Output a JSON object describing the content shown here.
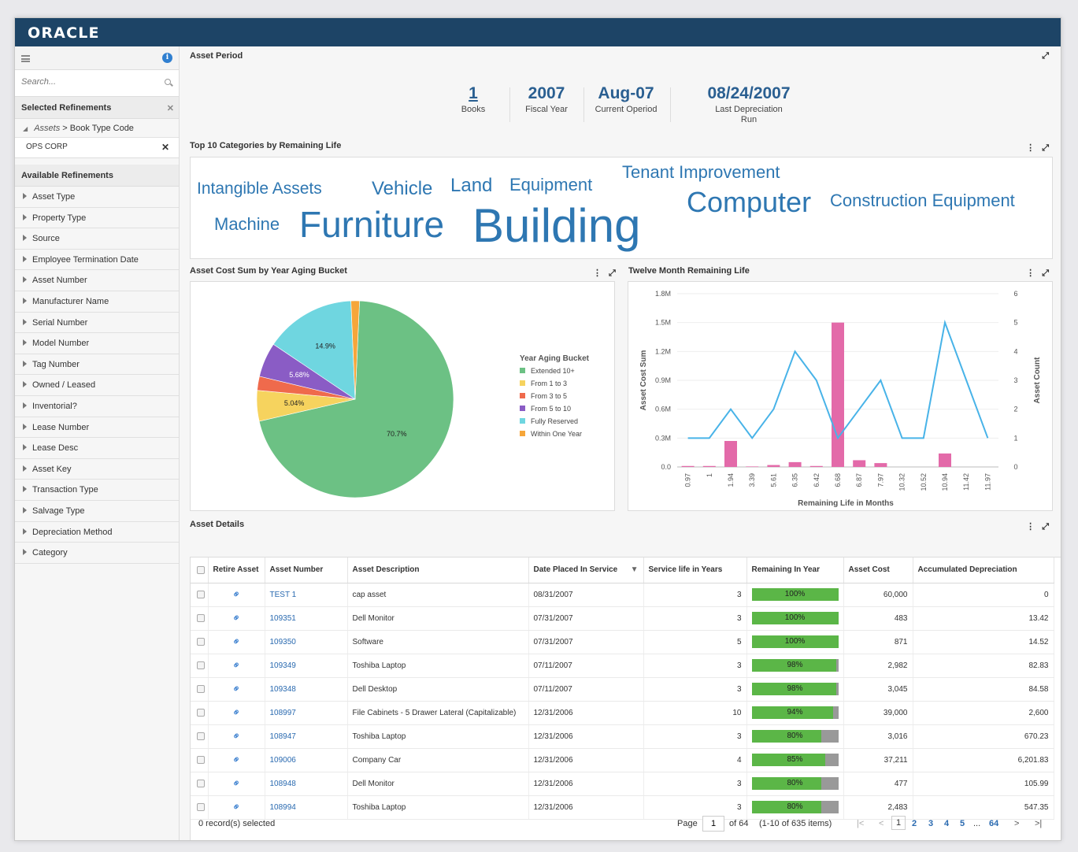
{
  "app": {
    "logo": "ORACLE"
  },
  "sidebar": {
    "search_placeholder": "Search...",
    "selected_title": "Selected Refinements",
    "crumb_link": "Assets",
    "crumb_sep": ">",
    "crumb_label": "Book Type Code",
    "chip_value": "OPS CORP",
    "available_title": "Available Refinements",
    "items": [
      "Asset Type",
      "Property Type",
      "Source",
      "Employee Termination Date",
      "Asset Number",
      "Manufacturer Name",
      "Serial Number",
      "Model Number",
      "Tag Number",
      "Owned / Leased",
      "Inventorial?",
      "Lease Number",
      "Lease Desc",
      "Asset Key",
      "Transaction Type",
      "Salvage Type",
      "Depreciation Method",
      "Category"
    ]
  },
  "asset_period": {
    "title": "Asset Period",
    "kpis": [
      {
        "value": "1",
        "label": "Books"
      },
      {
        "value": "2007",
        "label": "Fiscal Year"
      },
      {
        "value": "Aug-07",
        "label": "Current Operiod"
      },
      {
        "value": "08/24/2007",
        "label": "Last Depreciation Run"
      }
    ]
  },
  "tag_cloud": {
    "title": "Top 10 Categories by Remaining Life",
    "words": [
      "Intangible Assets",
      "Vehicle",
      "Land",
      "Equipment",
      "Tenant Improvement",
      "Machine",
      "Furniture",
      "Building",
      "Computer",
      "Construction Equipment"
    ]
  },
  "pie_panel": {
    "title": "Asset Cost Sum by Year Aging Bucket",
    "legend_title": "Year Aging Bucket"
  },
  "line_panel": {
    "title": "Twelve Month Remaining Life"
  },
  "chart_data": [
    {
      "type": "pie",
      "legend_title": "Year Aging Bucket",
      "labels": [
        "Extended 10+",
        "From 1 to 3",
        "From 3 to 5",
        "From 5 to 10",
        "Fully Reserved",
        "Within One Year"
      ],
      "values": [
        70.7,
        5.04,
        2.3,
        5.68,
        14.9,
        1.4
      ],
      "data_labels": [
        "70.7%",
        "5.04%",
        "",
        "5.68%",
        "14.9%",
        ""
      ],
      "colors": [
        "#6cc184",
        "#f6d35e",
        "#ef6a4c",
        "#8a5cc5",
        "#6fd6e0",
        "#f6a63a"
      ]
    },
    {
      "type": "bar+line",
      "xlabel": "Remaining Life in Months",
      "ylabel": "Asset Cost Sum",
      "y2label": "Asset Count",
      "x": [
        "0.97",
        "1",
        "1.94",
        "3.39",
        "5.61",
        "6.35",
        "6.42",
        "6.68",
        "6.87",
        "7.97",
        "10.32",
        "10.52",
        "10.94",
        "11.42",
        "11.97"
      ],
      "ylim": [
        0,
        1.8
      ],
      "yticks": [
        "0.0",
        "0.3M",
        "0.6M",
        "0.9M",
        "1.2M",
        "1.5M",
        "1.8M"
      ],
      "y2lim": [
        0,
        6
      ],
      "y2ticks": [
        "0",
        "1",
        "2",
        "3",
        "4",
        "5",
        "6"
      ],
      "series": [
        {
          "name": "Asset Cost Sum",
          "kind": "bar",
          "color": "#e36aa9",
          "values": [
            0.01,
            0.01,
            0.27,
            0.005,
            0.02,
            0.05,
            0.01,
            1.5,
            0.07,
            0.04,
            0,
            0,
            0.14,
            0,
            0
          ]
        },
        {
          "name": "Asset Count",
          "kind": "line",
          "color": "#48b3e8",
          "values": [
            1,
            1,
            2,
            1,
            2,
            4,
            3,
            1,
            2,
            3,
            1,
            1,
            5,
            3,
            1
          ]
        }
      ]
    }
  ],
  "details": {
    "title": "Asset Details",
    "columns": [
      "",
      "Retire Asset",
      "Asset Number",
      "Asset Description",
      "Date Placed In Service",
      "Service life in Years",
      "Remaining In Year",
      "Asset Cost",
      "Accumulated Depreciation"
    ],
    "rows": [
      {
        "num": "TEST 1",
        "desc": "cap asset",
        "date": "08/31/2007",
        "life": "3",
        "pct": "100%",
        "frac": 1.0,
        "cost": "60,000",
        "accum": "0"
      },
      {
        "num": "109351",
        "desc": "Dell Monitor",
        "date": "07/31/2007",
        "life": "3",
        "pct": "100%",
        "frac": 1.0,
        "cost": "483",
        "accum": "13.42"
      },
      {
        "num": "109350",
        "desc": "Software",
        "date": "07/31/2007",
        "life": "5",
        "pct": "100%",
        "frac": 1.0,
        "cost": "871",
        "accum": "14.52"
      },
      {
        "num": "109349",
        "desc": "Toshiba Laptop",
        "date": "07/11/2007",
        "life": "3",
        "pct": "98%",
        "frac": 0.98,
        "cost": "2,982",
        "accum": "82.83"
      },
      {
        "num": "109348",
        "desc": "Dell Desktop",
        "date": "07/11/2007",
        "life": "3",
        "pct": "98%",
        "frac": 0.98,
        "cost": "3,045",
        "accum": "84.58"
      },
      {
        "num": "108997",
        "desc": "File Cabinets - 5 Drawer Lateral (Capitalizable)",
        "date": "12/31/2006",
        "life": "10",
        "pct": "94%",
        "frac": 0.94,
        "cost": "39,000",
        "accum": "2,600"
      },
      {
        "num": "108947",
        "desc": "Toshiba Laptop",
        "date": "12/31/2006",
        "life": "3",
        "pct": "80%",
        "frac": 0.8,
        "cost": "3,016",
        "accum": "670.23"
      },
      {
        "num": "109006",
        "desc": "Company Car",
        "date": "12/31/2006",
        "life": "4",
        "pct": "85%",
        "frac": 0.85,
        "cost": "37,211",
        "accum": "6,201.83"
      },
      {
        "num": "108948",
        "desc": "Dell Monitor",
        "date": "12/31/2006",
        "life": "3",
        "pct": "80%",
        "frac": 0.8,
        "cost": "477",
        "accum": "105.99"
      },
      {
        "num": "108994",
        "desc": "Toshiba Laptop",
        "date": "12/31/2006",
        "life": "3",
        "pct": "80%",
        "frac": 0.8,
        "cost": "2,483",
        "accum": "547.35"
      }
    ],
    "footer": {
      "selected": "0 record(s) selected",
      "page_label": "Page",
      "page_value": "1",
      "of_pages": "of 64",
      "range": "(1-10 of 635 items)",
      "pages": [
        "1",
        "2",
        "3",
        "4",
        "5",
        "...",
        "64"
      ]
    }
  }
}
